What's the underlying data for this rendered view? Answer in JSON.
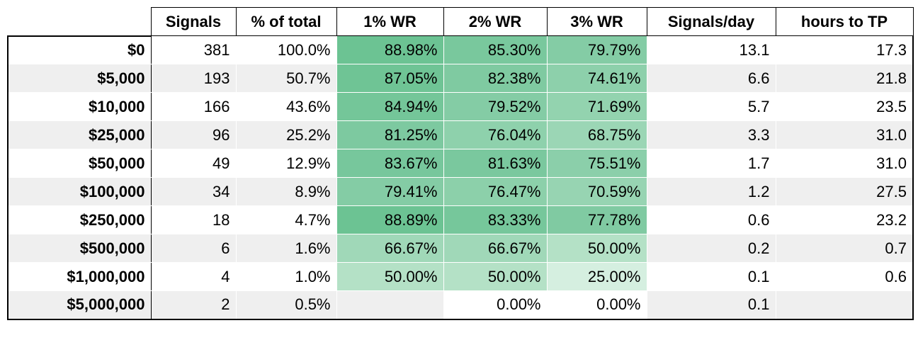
{
  "table": {
    "columns": [
      "Signals",
      "% of total",
      "1% WR",
      "2% WR",
      "3% WR",
      "Signals/day",
      "hours to TP"
    ],
    "rows": [
      {
        "label": "$0",
        "cells": [
          "381",
          "100.0%",
          "88.98%",
          "85.30%",
          "79.79%",
          "13.1",
          "17.3"
        ],
        "heat_fills": [
          "#6cc393",
          "#79c89d",
          "#84cca5"
        ]
      },
      {
        "label": "$5,000",
        "cells": [
          "193",
          "50.7%",
          "87.05%",
          "82.38%",
          "74.61%",
          "6.6",
          "21.8"
        ],
        "heat_fills": [
          "#6fc495",
          "#7fcaa1",
          "#8dd0ab"
        ]
      },
      {
        "label": "$10,000",
        "cells": [
          "166",
          "43.6%",
          "84.94%",
          "79.52%",
          "71.69%",
          "5.7",
          "23.5"
        ],
        "heat_fills": [
          "#74c699",
          "#84cca5",
          "#93d3af"
        ]
      },
      {
        "label": "$25,000",
        "cells": [
          "96",
          "25.2%",
          "81.25%",
          "76.04%",
          "68.75%",
          "3.3",
          "31.0"
        ],
        "heat_fills": [
          "#7dc9a0",
          "#8ed1ac",
          "#9bd6b5"
        ]
      },
      {
        "label": "$50,000",
        "cells": [
          "49",
          "12.9%",
          "83.67%",
          "81.63%",
          "75.51%",
          "1.7",
          "31.0"
        ],
        "heat_fills": [
          "#77c79c",
          "#7ac89e",
          "#8bcfaa"
        ]
      },
      {
        "label": "$100,000",
        "cells": [
          "34",
          "8.9%",
          "79.41%",
          "76.47%",
          "70.59%",
          "1.2",
          "27.5"
        ],
        "heat_fills": [
          "#84cca5",
          "#8cd0aa",
          "#97d4b2"
        ]
      },
      {
        "label": "$250,000",
        "cells": [
          "18",
          "4.7%",
          "88.89%",
          "83.33%",
          "77.78%",
          "0.6",
          "23.2"
        ],
        "heat_fills": [
          "#6cc393",
          "#76c79b",
          "#80caa2"
        ]
      },
      {
        "label": "$500,000",
        "cells": [
          "6",
          "1.6%",
          "66.67%",
          "66.67%",
          "50.00%",
          "0.2",
          "0.7"
        ],
        "heat_fills": [
          "#a0d8b8",
          "#a0d8b8",
          "#b4e1c6"
        ]
      },
      {
        "label": "$1,000,000",
        "cells": [
          "4",
          "1.0%",
          "50.00%",
          "50.00%",
          "25.00%",
          "0.1",
          "0.6"
        ],
        "heat_fills": [
          "#b4e1c6",
          "#b4e1c6",
          "#d5efe0"
        ]
      },
      {
        "label": "$5,000,000",
        "cells": [
          "2",
          "0.5%",
          null,
          "0.00%",
          "0.00%",
          "0.1",
          null
        ],
        "heat_fills": [
          null,
          "#ffffff",
          "#ffffff"
        ]
      }
    ]
  }
}
